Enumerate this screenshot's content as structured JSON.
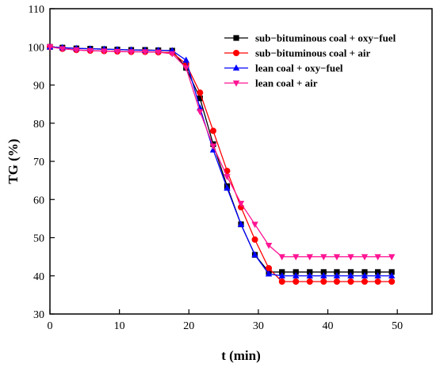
{
  "chart_data": {
    "type": "line",
    "xlabel": "t (min)",
    "ylabel": "TG (%)",
    "xlim": [
      0,
      55
    ],
    "ylim": [
      30,
      110
    ],
    "x_ticks": [
      0,
      10,
      20,
      30,
      40,
      50
    ],
    "y_ticks": [
      30,
      40,
      50,
      60,
      70,
      80,
      90,
      100,
      110
    ],
    "grid": false,
    "legend_position": "top-right",
    "series": [
      {
        "name": "sub−bituminous coal + oxy−fuel",
        "color": "#000000",
        "marker": "square",
        "x": [
          0,
          1.8,
          3.8,
          5.8,
          7.8,
          9.7,
          11.7,
          13.7,
          15.6,
          17.6,
          19.6,
          21.6,
          23.5,
          25.5,
          27.5,
          29.5,
          31.5,
          33.4,
          35.4,
          37.4,
          39.4,
          41.3,
          43.3,
          45.3,
          47.2,
          49.2
        ],
        "y": [
          100,
          99.8,
          99.6,
          99.5,
          99.4,
          99.3,
          99.2,
          99.2,
          99.1,
          99,
          94.5,
          86.5,
          74.5,
          63.5,
          53.5,
          45.5,
          41,
          41,
          41,
          41,
          41,
          41,
          41,
          41,
          41,
          41
        ]
      },
      {
        "name": "sub−bituminous coal + air",
        "color": "#ff0000",
        "marker": "circle",
        "x": [
          0,
          1.8,
          3.8,
          5.8,
          7.8,
          9.7,
          11.7,
          13.7,
          15.6,
          17.6,
          19.6,
          21.6,
          23.5,
          25.5,
          27.5,
          29.5,
          31.5,
          33.4,
          35.4,
          37.4,
          39.4,
          41.3,
          43.3,
          45.3,
          47.2,
          49.2
        ],
        "y": [
          100,
          99.5,
          99.2,
          99,
          98.9,
          98.8,
          98.7,
          98.7,
          98.6,
          98.5,
          95.5,
          88,
          78,
          67.5,
          58,
          49.5,
          42,
          38.5,
          38.5,
          38.5,
          38.5,
          38.5,
          38.5,
          38.5,
          38.5,
          38.5
        ]
      },
      {
        "name": "lean coal + oxy−fuel",
        "color": "#0000ff",
        "marker": "triangle-up",
        "x": [
          0,
          1.8,
          3.8,
          5.8,
          7.8,
          9.7,
          11.7,
          13.7,
          15.6,
          17.6,
          19.6,
          21.6,
          23.5,
          25.5,
          27.5,
          29.5,
          31.5,
          33.4,
          35.4,
          37.4,
          39.4,
          41.3,
          43.3,
          45.3,
          47.2,
          49.2
        ],
        "y": [
          100,
          99.8,
          99.6,
          99.5,
          99.4,
          99.3,
          99.2,
          99.1,
          99.1,
          99,
          96.5,
          84,
          73,
          63,
          53.5,
          45.5,
          40.5,
          40,
          40,
          40,
          40,
          40,
          40,
          40,
          40,
          40
        ]
      },
      {
        "name": "lean coal + air",
        "color": "#ff1493",
        "marker": "triangle-down",
        "x": [
          0,
          1.8,
          3.8,
          5.8,
          7.8,
          9.7,
          11.7,
          13.7,
          15.6,
          17.6,
          19.6,
          21.6,
          23.5,
          25.5,
          27.5,
          29.5,
          31.5,
          33.4,
          35.4,
          37.4,
          39.4,
          41.3,
          43.3,
          45.3,
          47.2,
          49.2
        ],
        "y": [
          100,
          99.5,
          99.2,
          99,
          98.9,
          98.8,
          98.7,
          98.7,
          98.6,
          98.2,
          94.5,
          83,
          74,
          66,
          59,
          53.5,
          48,
          45,
          45,
          45,
          45,
          45,
          45,
          45,
          45,
          45
        ]
      }
    ]
  }
}
